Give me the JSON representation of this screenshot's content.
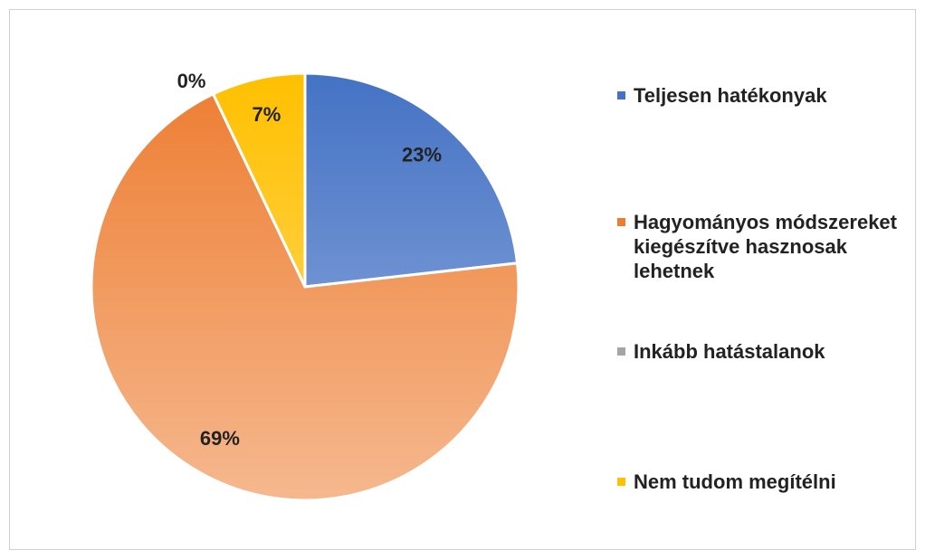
{
  "chart_data": {
    "type": "pie",
    "categories": [
      "Teljesen hatékonyak",
      "Hagyományos módszereket kiegészítve hasznosak lehetnek",
      "Inkább hatástalanok",
      "Nem tudom megítélni"
    ],
    "values": [
      23,
      69,
      0,
      7
    ],
    "value_labels": [
      "23%",
      "69%",
      "0%",
      "7%"
    ],
    "colors": [
      "#4472c4",
      "#ed7d31",
      "#a5a5a5",
      "#ffc000"
    ],
    "legend": "right"
  }
}
